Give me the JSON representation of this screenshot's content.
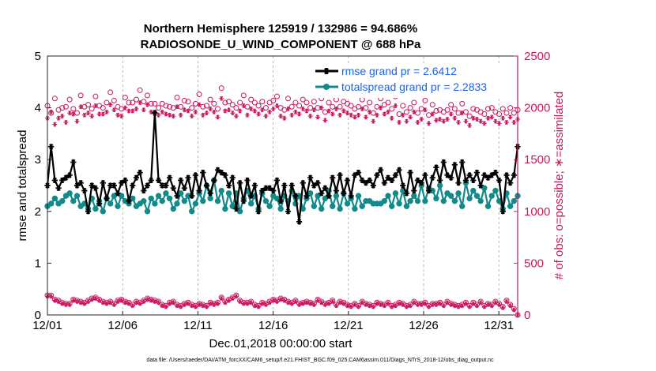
{
  "chart_data": {
    "type": "line",
    "title_line1": "Northern Hemisphere 125919 / 132986 = 94.686%",
    "title_line2": "RADIOSONDE_U_WIND_COMPONENT @ 688 hPa",
    "xlabel": "Dec.01,2018 00:00:00 start",
    "ylabel_left": "rmse and totalspread",
    "ylabel_right": "# of obs: o=possible; ∗=assimilated",
    "footnote": "data file: /Users/raeder/DAI/ATM_forcXX/CAM6_setup/f.e21.FHIST_BGC.f09_025.CAM6assim.011/Diags_NTrS_2018-12/obs_diag_output.nc",
    "x_ticks": [
      "12/01",
      "12/06",
      "12/11",
      "12/16",
      "12/21",
      "12/26",
      "12/31"
    ],
    "x_tick_values": [
      1,
      6,
      11,
      16,
      21,
      26,
      31
    ],
    "xlim": [
      1,
      32.25
    ],
    "ylim_left": [
      0,
      5
    ],
    "y_ticks_left": [
      "0",
      "1",
      "2",
      "3",
      "4",
      "5"
    ],
    "ylim_right": [
      0,
      2500
    ],
    "y_ticks_right": [
      "0",
      "500",
      "1000",
      "1500",
      "2000",
      "2500"
    ],
    "colors": {
      "rmse": "#000000",
      "spread": "#138a8a",
      "obs": "#c8175d",
      "legend_text": "#1e63e6"
    },
    "legend": [
      {
        "name": "rmse grand pr = 2.6412",
        "series": "rmse"
      },
      {
        "name": "totalspread grand pr = 2.2833",
        "series": "spread"
      }
    ],
    "series": [
      {
        "name": "rmse",
        "values": [
          2.5,
          3.25,
          2.6,
          2.45,
          2.6,
          2.65,
          2.7,
          2.95,
          2.5,
          2.55,
          2.4,
          2.0,
          2.5,
          2.45,
          2.15,
          2.55,
          2.25,
          2.5,
          2.5,
          2.35,
          2.55,
          2.6,
          2.2,
          2.5,
          2.65,
          2.75,
          2.4,
          2.5,
          2.6,
          3.9,
          2.6,
          2.5,
          2.5,
          2.65,
          2.45,
          2.3,
          2.6,
          2.45,
          2.65,
          2.3,
          2.7,
          2.4,
          2.75,
          2.5,
          2.35,
          2.6,
          2.8,
          2.75,
          2.7,
          2.5,
          2.65,
          2.05,
          2.55,
          2.2,
          2.6,
          2.3,
          2.5,
          2.0,
          2.4,
          2.45,
          2.45,
          2.4,
          2.6,
          2.2,
          2.5,
          2.0,
          2.5,
          2.3,
          1.8,
          2.55,
          2.3,
          2.65,
          2.5,
          2.55,
          2.35,
          2.45,
          2.3,
          2.65,
          2.4,
          2.7,
          2.35,
          2.6,
          2.3,
          2.7,
          2.75,
          2.6,
          2.55,
          2.6,
          2.5,
          2.7,
          2.8,
          2.55,
          2.65,
          2.6,
          2.7,
          2.8,
          2.5,
          2.35,
          2.75,
          2.4,
          2.6,
          2.55,
          2.7,
          2.4,
          2.65,
          2.85,
          2.6,
          2.95,
          2.7,
          2.65,
          2.9,
          2.55,
          2.95,
          2.6,
          2.7,
          2.6,
          2.75,
          2.5,
          2.7,
          2.65,
          2.7,
          2.75,
          2.6,
          2.0,
          2.7,
          2.55,
          2.7,
          3.25
        ]
      },
      {
        "name": "totalspread",
        "values": [
          2.1,
          2.15,
          2.25,
          2.15,
          2.2,
          2.3,
          2.35,
          2.2,
          2.3,
          2.1,
          2.15,
          2.05,
          2.25,
          2.05,
          2.2,
          2.0,
          2.25,
          2.15,
          2.3,
          2.1,
          2.3,
          2.2,
          2.15,
          2.25,
          2.1,
          2.15,
          2.2,
          2.0,
          2.25,
          2.15,
          2.3,
          2.2,
          2.35,
          2.25,
          2.05,
          2.15,
          2.35,
          2.2,
          2.3,
          2.0,
          2.15,
          2.35,
          2.2,
          2.5,
          2.25,
          2.6,
          2.2,
          2.4,
          2.05,
          2.35,
          2.1,
          2.35,
          2.0,
          2.25,
          2.4,
          2.15,
          2.3,
          2.05,
          2.35,
          2.2,
          2.1,
          2.3,
          2.25,
          2.05,
          2.3,
          2.2,
          2.4,
          2.15,
          2.3,
          2.05,
          2.25,
          2.35,
          2.1,
          2.3,
          2.05,
          2.25,
          2.4,
          2.1,
          2.3,
          2.05,
          2.35,
          2.15,
          2.25,
          2.05,
          2.3,
          2.1,
          2.2,
          2.2,
          2.15,
          2.15,
          2.15,
          2.2,
          2.3,
          2.1,
          2.35,
          2.15,
          2.4,
          2.1,
          2.2,
          2.3,
          2.2,
          2.5,
          2.2,
          2.45,
          2.4,
          2.25,
          2.5,
          2.2,
          2.35,
          2.3,
          2.2,
          2.35,
          2.1,
          2.55,
          2.25,
          2.4,
          2.3,
          2.2,
          2.45,
          2.1,
          2.3,
          2.4,
          2.2,
          2.05,
          2.35,
          2.1,
          2.2,
          2.3
        ]
      },
      {
        "name": "possible obs",
        "marker": "o",
        "values": [
          2020,
          1950,
          2090,
          1980,
          2000,
          2010,
          2080,
          1990,
          1950,
          2120,
          2010,
          2030,
          1990,
          2110,
          2020,
          2000,
          2050,
          2150,
          2070,
          2010,
          1990,
          2100,
          2050,
          2050,
          2080,
          2170,
          2060,
          2120,
          2040,
          2040,
          2000,
          2040,
          2020,
          2010,
          2000,
          2100,
          2010,
          2070,
          2060,
          2000,
          2040,
          2130,
          2010,
          2020,
          2080,
          2040,
          1990,
          2190,
          2050,
          2060,
          2030,
          2000,
          2050,
          2120,
          2010,
          2080,
          2050,
          2020,
          2060,
          2000,
          2050,
          2070,
          2110,
          2000,
          1980,
          2090,
          2010,
          2050,
          2020,
          2080,
          2050,
          2000,
          2060,
          2000,
          2090,
          1960,
          2050,
          2010,
          2080,
          2010,
          2060,
          2040,
          2020,
          1990,
          2010,
          2080,
          2000,
          2050,
          1950,
          2010,
          2090,
          2030,
          2050,
          1990,
          2110,
          1940,
          2020,
          1960,
          2000,
          2050,
          1950,
          1990,
          2070,
          1930,
          2030,
          1970,
          1980,
          1960,
          1980,
          2030,
          1990,
          1950,
          2040,
          1960,
          1920,
          1990,
          1980,
          1960,
          1940,
          1990,
          2000,
          1960,
          1940,
          1990,
          1950,
          2000,
          1950,
          1980
        ]
      },
      {
        "name": "assimilated obs",
        "marker": "*",
        "values": [
          1900,
          1960,
          1840,
          1900,
          1920,
          1860,
          1950,
          1940,
          1870,
          2010,
          1930,
          1950,
          1920,
          2020,
          1940,
          1940,
          1960,
          2030,
          1980,
          1930,
          1920,
          2000,
          1970,
          1970,
          1990,
          2050,
          1980,
          2030,
          1960,
          1960,
          1930,
          1960,
          1940,
          1930,
          1920,
          2010,
          1930,
          1980,
          1970,
          1920,
          1960,
          2030,
          1930,
          1950,
          1990,
          1960,
          1910,
          2090,
          1970,
          1980,
          1950,
          1920,
          1970,
          2020,
          1930,
          1990,
          1970,
          1940,
          1980,
          1920,
          1960,
          1990,
          2020,
          1920,
          1900,
          1990,
          1930,
          1960,
          1940,
          1990,
          1970,
          1920,
          1980,
          1910,
          2000,
          1880,
          1970,
          1940,
          1990,
          1930,
          1970,
          1950,
          1930,
          1910,
          1930,
          1990,
          1910,
          1960,
          1870,
          1930,
          2000,
          1940,
          1960,
          1900,
          2020,
          1860,
          1930,
          1870,
          1910,
          1960,
          1860,
          1890,
          1980,
          1850,
          1940,
          1880,
          1890,
          1870,
          1890,
          1940,
          1900,
          1860,
          1950,
          1870,
          1830,
          1900,
          1890,
          1870,
          1850,
          1900,
          1910,
          1870,
          1850,
          1900,
          1860,
          1910,
          1860,
          1890
        ]
      },
      {
        "name": "possible obs low",
        "marker": "o",
        "values": [
          190,
          190,
          150,
          140,
          120,
          110,
          110,
          150,
          140,
          130,
          120,
          140,
          160,
          170,
          150,
          130,
          120,
          130,
          110,
          140,
          150,
          130,
          120,
          100,
          130,
          120,
          140,
          160,
          150,
          140,
          130,
          100,
          90,
          120,
          130,
          100,
          90,
          110,
          120,
          100,
          90,
          110,
          100,
          90,
          120,
          110,
          120,
          170,
          130,
          150,
          170,
          190,
          140,
          120,
          120,
          130,
          100,
          90,
          120,
          110,
          130,
          150,
          140,
          160,
          150,
          130,
          120,
          140,
          110,
          120,
          130,
          120,
          110,
          150,
          130,
          110,
          120,
          140,
          100,
          130,
          120,
          100,
          90,
          110,
          90,
          130,
          110,
          100,
          90,
          120,
          110,
          100,
          120,
          90,
          100,
          120,
          110,
          90,
          100,
          130,
          110,
          110,
          120,
          90,
          110,
          110,
          120,
          100,
          130,
          110,
          100,
          90,
          100,
          120,
          90,
          120,
          100,
          130,
          90,
          110,
          100,
          130,
          110,
          80,
          140,
          100,
          60,
          0
        ]
      },
      {
        "name": "assimilated obs low",
        "marker": "*",
        "values": [
          180,
          180,
          140,
          130,
          110,
          100,
          100,
          140,
          130,
          120,
          110,
          130,
          150,
          160,
          140,
          120,
          110,
          120,
          100,
          130,
          140,
          120,
          110,
          90,
          120,
          110,
          130,
          150,
          140,
          130,
          120,
          90,
          80,
          110,
          120,
          90,
          80,
          100,
          110,
          90,
          80,
          100,
          90,
          80,
          110,
          100,
          110,
          160,
          120,
          140,
          160,
          180,
          130,
          110,
          110,
          120,
          90,
          80,
          110,
          100,
          120,
          140,
          130,
          150,
          140,
          120,
          110,
          130,
          100,
          110,
          120,
          110,
          100,
          140,
          120,
          100,
          110,
          130,
          90,
          120,
          110,
          90,
          80,
          100,
          80,
          120,
          100,
          90,
          80,
          110,
          100,
          90,
          110,
          80,
          90,
          110,
          100,
          80,
          90,
          120,
          100,
          100,
          110,
          80,
          100,
          100,
          110,
          90,
          120,
          100,
          90,
          80,
          90,
          110,
          80,
          110,
          90,
          120,
          80,
          100,
          90,
          120,
          100,
          70,
          130,
          90,
          50,
          0
        ]
      }
    ]
  }
}
